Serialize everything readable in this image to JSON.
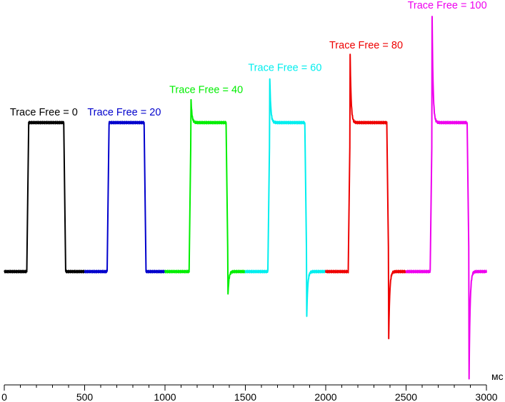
{
  "chart_data": {
    "type": "line",
    "x_unit": "мс",
    "xlim": [
      0,
      3000
    ],
    "x_ticks": [
      0,
      500,
      1000,
      1500,
      2000,
      2500,
      3000
    ],
    "x_tick_labels": [
      "0",
      "500",
      "1000",
      "1500",
      "2000",
      "2500",
      "3000"
    ],
    "ylim": [
      -0.5,
      1.9
    ],
    "y_axis_visible": false,
    "grid": false,
    "series": [
      {
        "name": "Trace Free = 0",
        "color": "#000000",
        "x_start": 0,
        "x_end": 500,
        "rise": 140,
        "fall": 370,
        "overshoot": 0.0
      },
      {
        "name": "Trace Free = 20",
        "color": "#0000cc",
        "x_start": 500,
        "x_end": 1000,
        "rise": 640,
        "fall": 870,
        "overshoot": 0.0
      },
      {
        "name": "Trace Free = 40",
        "color": "#00ee00",
        "x_start": 1000,
        "x_end": 1500,
        "rise": 1150,
        "fall": 1380,
        "overshoot": 0.15
      },
      {
        "name": "Trace Free = 60",
        "color": "#00eeee",
        "x_start": 1500,
        "x_end": 2000,
        "rise": 1640,
        "fall": 1870,
        "overshoot": 0.3
      },
      {
        "name": "Trace Free = 80",
        "color": "#ee0000",
        "x_start": 2000,
        "x_end": 2500,
        "rise": 2140,
        "fall": 2380,
        "overshoot": 0.45
      },
      {
        "name": "Trace Free = 100",
        "color": "#ee00ee",
        "x_start": 2500,
        "x_end": 3000,
        "rise": 2650,
        "fall": 2880,
        "overshoot": 0.72
      }
    ]
  }
}
